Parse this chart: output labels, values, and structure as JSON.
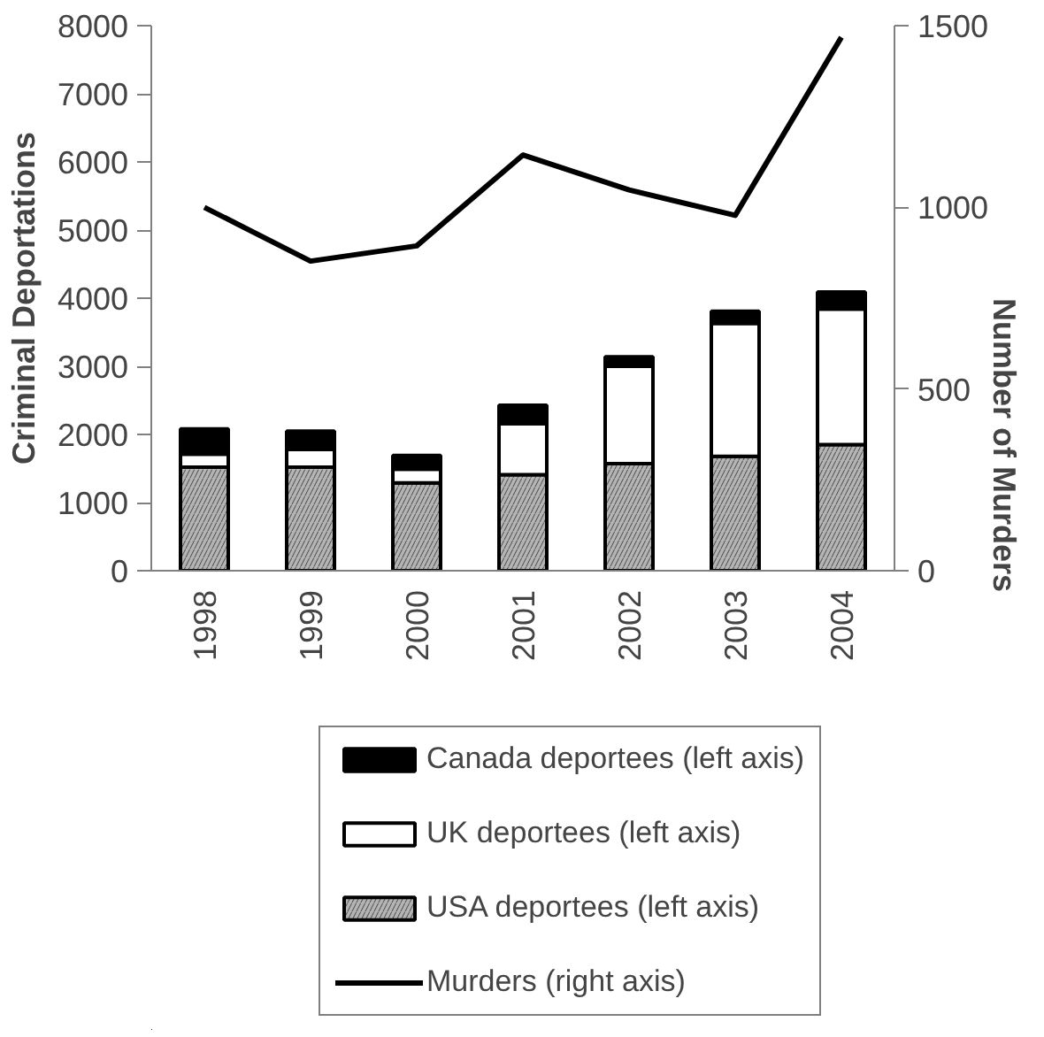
{
  "chart_data": {
    "type": "bar",
    "stacked": true,
    "ylabel": "Criminal Deportations",
    "y2label": "Number of Murders",
    "categories": [
      "1998",
      "1999",
      "2000",
      "2001",
      "2002",
      "2003",
      "2004"
    ],
    "series": [
      {
        "name": "USA deportees (left axis)",
        "color": "#b4b4b4",
        "values": [
          1520,
          1520,
          1290,
          1410,
          1570,
          1680,
          1850
        ]
      },
      {
        "name": "UK deportees (left axis)",
        "color": "#ffffff",
        "values": [
          190,
          260,
          200,
          750,
          1430,
          1950,
          1990
        ]
      },
      {
        "name": "Canada deportees (left axis)",
        "color": "#000000",
        "values": [
          370,
          270,
          200,
          270,
          140,
          180,
          250
        ]
      },
      {
        "name": "Murders (right axis)",
        "type": "line",
        "axis": "y2",
        "color": "#000000",
        "values": [
          1000,
          852,
          894,
          1144,
          1048,
          978,
          1468
        ]
      }
    ],
    "ylim": [
      0,
      8000
    ],
    "yticks": [
      0,
      1000,
      2000,
      3000,
      4000,
      5000,
      6000,
      7000,
      8000
    ],
    "y2lim": [
      0,
      1500
    ],
    "y2ticks": [
      0,
      500,
      1000,
      1500
    ],
    "grid": false,
    "legend": "bottom",
    "marker": "none"
  }
}
